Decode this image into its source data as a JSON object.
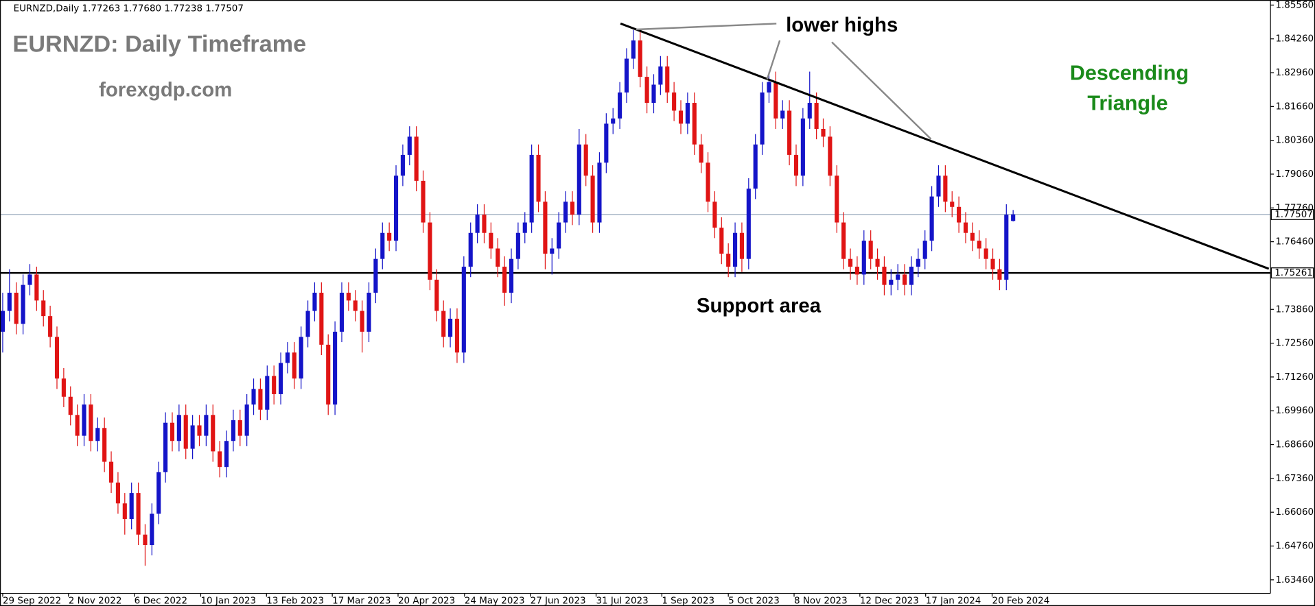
{
  "chart_data": {
    "type": "candlestick",
    "header": "EURNZD,Daily  1.77263 1.77680 1.77238 1.77507",
    "annotations": {
      "title": "EURNZD: Daily Timeframe",
      "site": "forexgdp.com",
      "lower_highs": "lower highs",
      "pattern": [
        "Descending",
        "Triangle"
      ],
      "support": "Support area"
    },
    "up_color": "#1414c8",
    "down_color": "#e01414",
    "grid": false,
    "ylim": [
      1.6294,
      1.8569
    ],
    "yticks": [
      {
        "value": 1.8556,
        "label": "1.85560"
      },
      {
        "value": 1.8426,
        "label": "1.84260"
      },
      {
        "value": 1.8296,
        "label": "1.82960"
      },
      {
        "value": 1.8166,
        "label": "1.81660"
      },
      {
        "value": 1.8036,
        "label": "1.80360"
      },
      {
        "value": 1.7906,
        "label": "1.79060"
      },
      {
        "value": 1.7776,
        "label": "1.77760"
      },
      {
        "value": 1.7646,
        "label": "1.76460"
      },
      {
        "value": 1.7386,
        "label": "1.73860"
      },
      {
        "value": 1.7256,
        "label": "1.72560"
      },
      {
        "value": 1.7126,
        "label": "1.71260"
      },
      {
        "value": 1.6996,
        "label": "1.69960"
      },
      {
        "value": 1.6866,
        "label": "1.68660"
      },
      {
        "value": 1.6736,
        "label": "1.67360"
      },
      {
        "value": 1.6606,
        "label": "1.66060"
      },
      {
        "value": 1.6476,
        "label": "1.64760"
      },
      {
        "value": 1.6346,
        "label": "1.63460"
      }
    ],
    "xlim": [
      -0.4,
      186.7
    ],
    "xticks": [
      {
        "value": 0,
        "label": "29 Sep 2022"
      },
      {
        "value": 9.7,
        "label": "2 Nov 2022"
      },
      {
        "value": 19.4,
        "label": "6 Dec 2022"
      },
      {
        "value": 29.2,
        "label": "10 Jan 2023"
      },
      {
        "value": 38.9,
        "label": "13 Feb 2023"
      },
      {
        "value": 48.6,
        "label": "17 Mar 2023"
      },
      {
        "value": 58.3,
        "label": "20 Apr 2023"
      },
      {
        "value": 68.1,
        "label": "24 May 2023"
      },
      {
        "value": 77.8,
        "label": "27 Jun 2023"
      },
      {
        "value": 87.5,
        "label": "31 Jul 2023"
      },
      {
        "value": 97.2,
        "label": "1 Sep 2023"
      },
      {
        "value": 107,
        "label": "5 Oct 2023"
      },
      {
        "value": 116.7,
        "label": "8 Nov 2023"
      },
      {
        "value": 126.4,
        "label": "12 Dec 2023"
      },
      {
        "value": 136.1,
        "label": "17 Jan 2024"
      },
      {
        "value": 145.9,
        "label": "20 Feb 2024"
      }
    ],
    "current_price": 1.77507,
    "current_price_color": "#9aa8bc",
    "support_level": 1.75261,
    "support_color": "#000000",
    "trendline": {
      "x": [
        91.1,
        186.7
      ],
      "y": [
        1.8485,
        1.7542
      ],
      "color": "#000000"
    },
    "ohlc": [
      [
        1.73,
        1.745,
        1.722,
        1.738
      ],
      [
        1.738,
        1.754,
        1.734,
        1.745
      ],
      [
        1.745,
        1.749,
        1.729,
        1.733
      ],
      [
        1.733,
        1.752,
        1.729,
        1.748
      ],
      [
        1.748,
        1.756,
        1.744,
        1.752
      ],
      [
        1.752,
        1.755,
        1.738,
        1.742
      ],
      [
        1.742,
        1.746,
        1.732,
        1.736
      ],
      [
        1.736,
        1.74,
        1.724,
        1.728
      ],
      [
        1.728,
        1.732,
        1.708,
        1.712
      ],
      [
        1.712,
        1.716,
        1.701,
        1.705
      ],
      [
        1.705,
        1.709,
        1.694,
        1.698
      ],
      [
        1.698,
        1.702,
        1.686,
        1.69
      ],
      [
        1.69,
        1.706,
        1.686,
        1.702
      ],
      [
        1.702,
        1.706,
        1.684,
        1.688
      ],
      [
        1.688,
        1.697,
        1.684,
        1.693
      ],
      [
        1.693,
        1.697,
        1.676,
        1.68
      ],
      [
        1.68,
        1.684,
        1.668,
        1.672
      ],
      [
        1.672,
        1.676,
        1.66,
        1.664
      ],
      [
        1.664,
        1.668,
        1.652,
        1.658
      ],
      [
        1.658,
        1.672,
        1.654,
        1.668
      ],
      [
        1.668,
        1.672,
        1.648,
        1.652
      ],
      [
        1.652,
        1.656,
        1.64,
        1.648
      ],
      [
        1.648,
        1.664,
        1.644,
        1.66
      ],
      [
        1.66,
        1.68,
        1.656,
        1.676
      ],
      [
        1.676,
        1.699,
        1.672,
        1.695
      ],
      [
        1.695,
        1.699,
        1.684,
        1.688
      ],
      [
        1.688,
        1.702,
        1.684,
        1.698
      ],
      [
        1.698,
        1.702,
        1.681,
        1.685
      ],
      [
        1.685,
        1.698,
        1.681,
        1.694
      ],
      [
        1.694,
        1.698,
        1.686,
        1.69
      ],
      [
        1.69,
        1.702,
        1.686,
        1.698
      ],
      [
        1.698,
        1.702,
        1.68,
        1.684
      ],
      [
        1.684,
        1.688,
        1.674,
        1.678
      ],
      [
        1.678,
        1.692,
        1.674,
        1.688
      ],
      [
        1.688,
        1.7,
        1.684,
        1.696
      ],
      [
        1.696,
        1.7,
        1.686,
        1.69
      ],
      [
        1.69,
        1.706,
        1.686,
        1.702
      ],
      [
        1.702,
        1.712,
        1.698,
        1.708
      ],
      [
        1.708,
        1.712,
        1.696,
        1.7
      ],
      [
        1.7,
        1.717,
        1.696,
        1.713
      ],
      [
        1.713,
        1.717,
        1.702,
        1.706
      ],
      [
        1.706,
        1.722,
        1.702,
        1.718
      ],
      [
        1.718,
        1.726,
        1.714,
        1.722
      ],
      [
        1.722,
        1.726,
        1.708,
        1.712
      ],
      [
        1.712,
        1.732,
        1.708,
        1.728
      ],
      [
        1.728,
        1.742,
        1.724,
        1.738
      ],
      [
        1.738,
        1.749,
        1.734,
        1.745
      ],
      [
        1.745,
        1.749,
        1.721,
        1.725
      ],
      [
        1.725,
        1.729,
        1.698,
        1.702
      ],
      [
        1.702,
        1.734,
        1.698,
        1.73
      ],
      [
        1.73,
        1.749,
        1.726,
        1.745
      ],
      [
        1.745,
        1.749,
        1.738,
        1.742
      ],
      [
        1.742,
        1.746,
        1.734,
        1.738
      ],
      [
        1.738,
        1.742,
        1.722,
        1.73
      ],
      [
        1.73,
        1.749,
        1.726,
        1.745
      ],
      [
        1.745,
        1.762,
        1.741,
        1.758
      ],
      [
        1.758,
        1.772,
        1.754,
        1.768
      ],
      [
        1.768,
        1.772,
        1.761,
        1.765
      ],
      [
        1.765,
        1.794,
        1.761,
        1.79
      ],
      [
        1.79,
        1.802,
        1.786,
        1.798
      ],
      [
        1.798,
        1.809,
        1.794,
        1.805
      ],
      [
        1.805,
        1.809,
        1.784,
        1.788
      ],
      [
        1.788,
        1.792,
        1.768,
        1.772
      ],
      [
        1.772,
        1.776,
        1.746,
        1.75
      ],
      [
        1.75,
        1.754,
        1.734,
        1.738
      ],
      [
        1.738,
        1.742,
        1.724,
        1.728
      ],
      [
        1.728,
        1.739,
        1.724,
        1.735
      ],
      [
        1.735,
        1.739,
        1.718,
        1.722
      ],
      [
        1.722,
        1.759,
        1.718,
        1.755
      ],
      [
        1.755,
        1.772,
        1.751,
        1.768
      ],
      [
        1.768,
        1.779,
        1.764,
        1.775
      ],
      [
        1.775,
        1.779,
        1.764,
        1.768
      ],
      [
        1.768,
        1.772,
        1.758,
        1.762
      ],
      [
        1.762,
        1.766,
        1.751,
        1.755
      ],
      [
        1.755,
        1.759,
        1.74,
        1.745
      ],
      [
        1.745,
        1.762,
        1.741,
        1.758
      ],
      [
        1.758,
        1.772,
        1.754,
        1.768
      ],
      [
        1.768,
        1.776,
        1.764,
        1.772
      ],
      [
        1.772,
        1.802,
        1.768,
        1.798
      ],
      [
        1.798,
        1.802,
        1.776,
        1.78
      ],
      [
        1.78,
        1.784,
        1.754,
        1.76
      ],
      [
        1.76,
        1.766,
        1.752,
        1.762
      ],
      [
        1.762,
        1.776,
        1.758,
        1.772
      ],
      [
        1.772,
        1.784,
        1.768,
        1.78
      ],
      [
        1.78,
        1.784,
        1.771,
        1.775
      ],
      [
        1.775,
        1.808,
        1.771,
        1.802
      ],
      [
        1.802,
        1.806,
        1.786,
        1.79
      ],
      [
        1.79,
        1.794,
        1.768,
        1.772
      ],
      [
        1.772,
        1.799,
        1.768,
        1.795
      ],
      [
        1.795,
        1.814,
        1.791,
        1.81
      ],
      [
        1.81,
        1.816,
        1.806,
        1.812
      ],
      [
        1.812,
        1.826,
        1.808,
        1.822
      ],
      [
        1.822,
        1.839,
        1.818,
        1.835
      ],
      [
        1.835,
        1.846,
        1.831,
        1.842
      ],
      [
        1.842,
        1.846,
        1.824,
        1.828
      ],
      [
        1.828,
        1.832,
        1.814,
        1.818
      ],
      [
        1.818,
        1.829,
        1.814,
        1.825
      ],
      [
        1.825,
        1.836,
        1.821,
        1.832
      ],
      [
        1.832,
        1.836,
        1.818,
        1.822
      ],
      [
        1.822,
        1.826,
        1.811,
        1.815
      ],
      [
        1.815,
        1.819,
        1.806,
        1.81
      ],
      [
        1.81,
        1.822,
        1.806,
        1.818
      ],
      [
        1.818,
        1.822,
        1.798,
        1.802
      ],
      [
        1.802,
        1.806,
        1.791,
        1.795
      ],
      [
        1.795,
        1.799,
        1.776,
        1.78
      ],
      [
        1.78,
        1.784,
        1.766,
        1.77
      ],
      [
        1.77,
        1.774,
        1.756,
        1.76
      ],
      [
        1.76,
        1.764,
        1.751,
        1.755
      ],
      [
        1.755,
        1.772,
        1.751,
        1.768
      ],
      [
        1.768,
        1.772,
        1.753,
        1.758
      ],
      [
        1.758,
        1.789,
        1.754,
        1.785
      ],
      [
        1.785,
        1.806,
        1.781,
        1.802
      ],
      [
        1.802,
        1.826,
        1.798,
        1.822
      ],
      [
        1.822,
        1.83,
        1.818,
        1.826
      ],
      [
        1.826,
        1.83,
        1.808,
        1.812
      ],
      [
        1.812,
        1.819,
        1.808,
        1.815
      ],
      [
        1.815,
        1.819,
        1.794,
        1.798
      ],
      [
        1.798,
        1.802,
        1.786,
        1.79
      ],
      [
        1.79,
        1.816,
        1.786,
        1.812
      ],
      [
        1.812,
        1.83,
        1.808,
        1.818
      ],
      [
        1.818,
        1.822,
        1.804,
        1.808
      ],
      [
        1.808,
        1.812,
        1.801,
        1.805
      ],
      [
        1.805,
        1.809,
        1.786,
        1.79
      ],
      [
        1.79,
        1.794,
        1.768,
        1.772
      ],
      [
        1.772,
        1.776,
        1.754,
        1.758
      ],
      [
        1.758,
        1.762,
        1.75,
        1.755
      ],
      [
        1.755,
        1.759,
        1.748,
        1.752
      ],
      [
        1.752,
        1.769,
        1.748,
        1.765
      ],
      [
        1.765,
        1.769,
        1.754,
        1.758
      ],
      [
        1.758,
        1.762,
        1.75,
        1.755
      ],
      [
        1.755,
        1.759,
        1.744,
        1.748
      ],
      [
        1.748,
        1.754,
        1.744,
        1.75
      ],
      [
        1.75,
        1.756,
        1.746,
        1.752
      ],
      [
        1.752,
        1.756,
        1.744,
        1.748
      ],
      [
        1.748,
        1.759,
        1.744,
        1.755
      ],
      [
        1.755,
        1.762,
        1.751,
        1.758
      ],
      [
        1.758,
        1.769,
        1.754,
        1.765
      ],
      [
        1.765,
        1.786,
        1.761,
        1.782
      ],
      [
        1.782,
        1.794,
        1.778,
        1.79
      ],
      [
        1.79,
        1.794,
        1.776,
        1.78
      ],
      [
        1.78,
        1.784,
        1.774,
        1.778
      ],
      [
        1.778,
        1.782,
        1.768,
        1.772
      ],
      [
        1.772,
        1.776,
        1.764,
        1.768
      ],
      [
        1.768,
        1.772,
        1.761,
        1.765
      ],
      [
        1.765,
        1.769,
        1.758,
        1.762
      ],
      [
        1.762,
        1.766,
        1.754,
        1.758
      ],
      [
        1.758,
        1.762,
        1.75,
        1.754
      ],
      [
        1.754,
        1.758,
        1.746,
        1.75
      ],
      [
        1.75,
        1.779,
        1.746,
        1.775
      ],
      [
        1.7726,
        1.7768,
        1.7724,
        1.7751
      ]
    ]
  }
}
